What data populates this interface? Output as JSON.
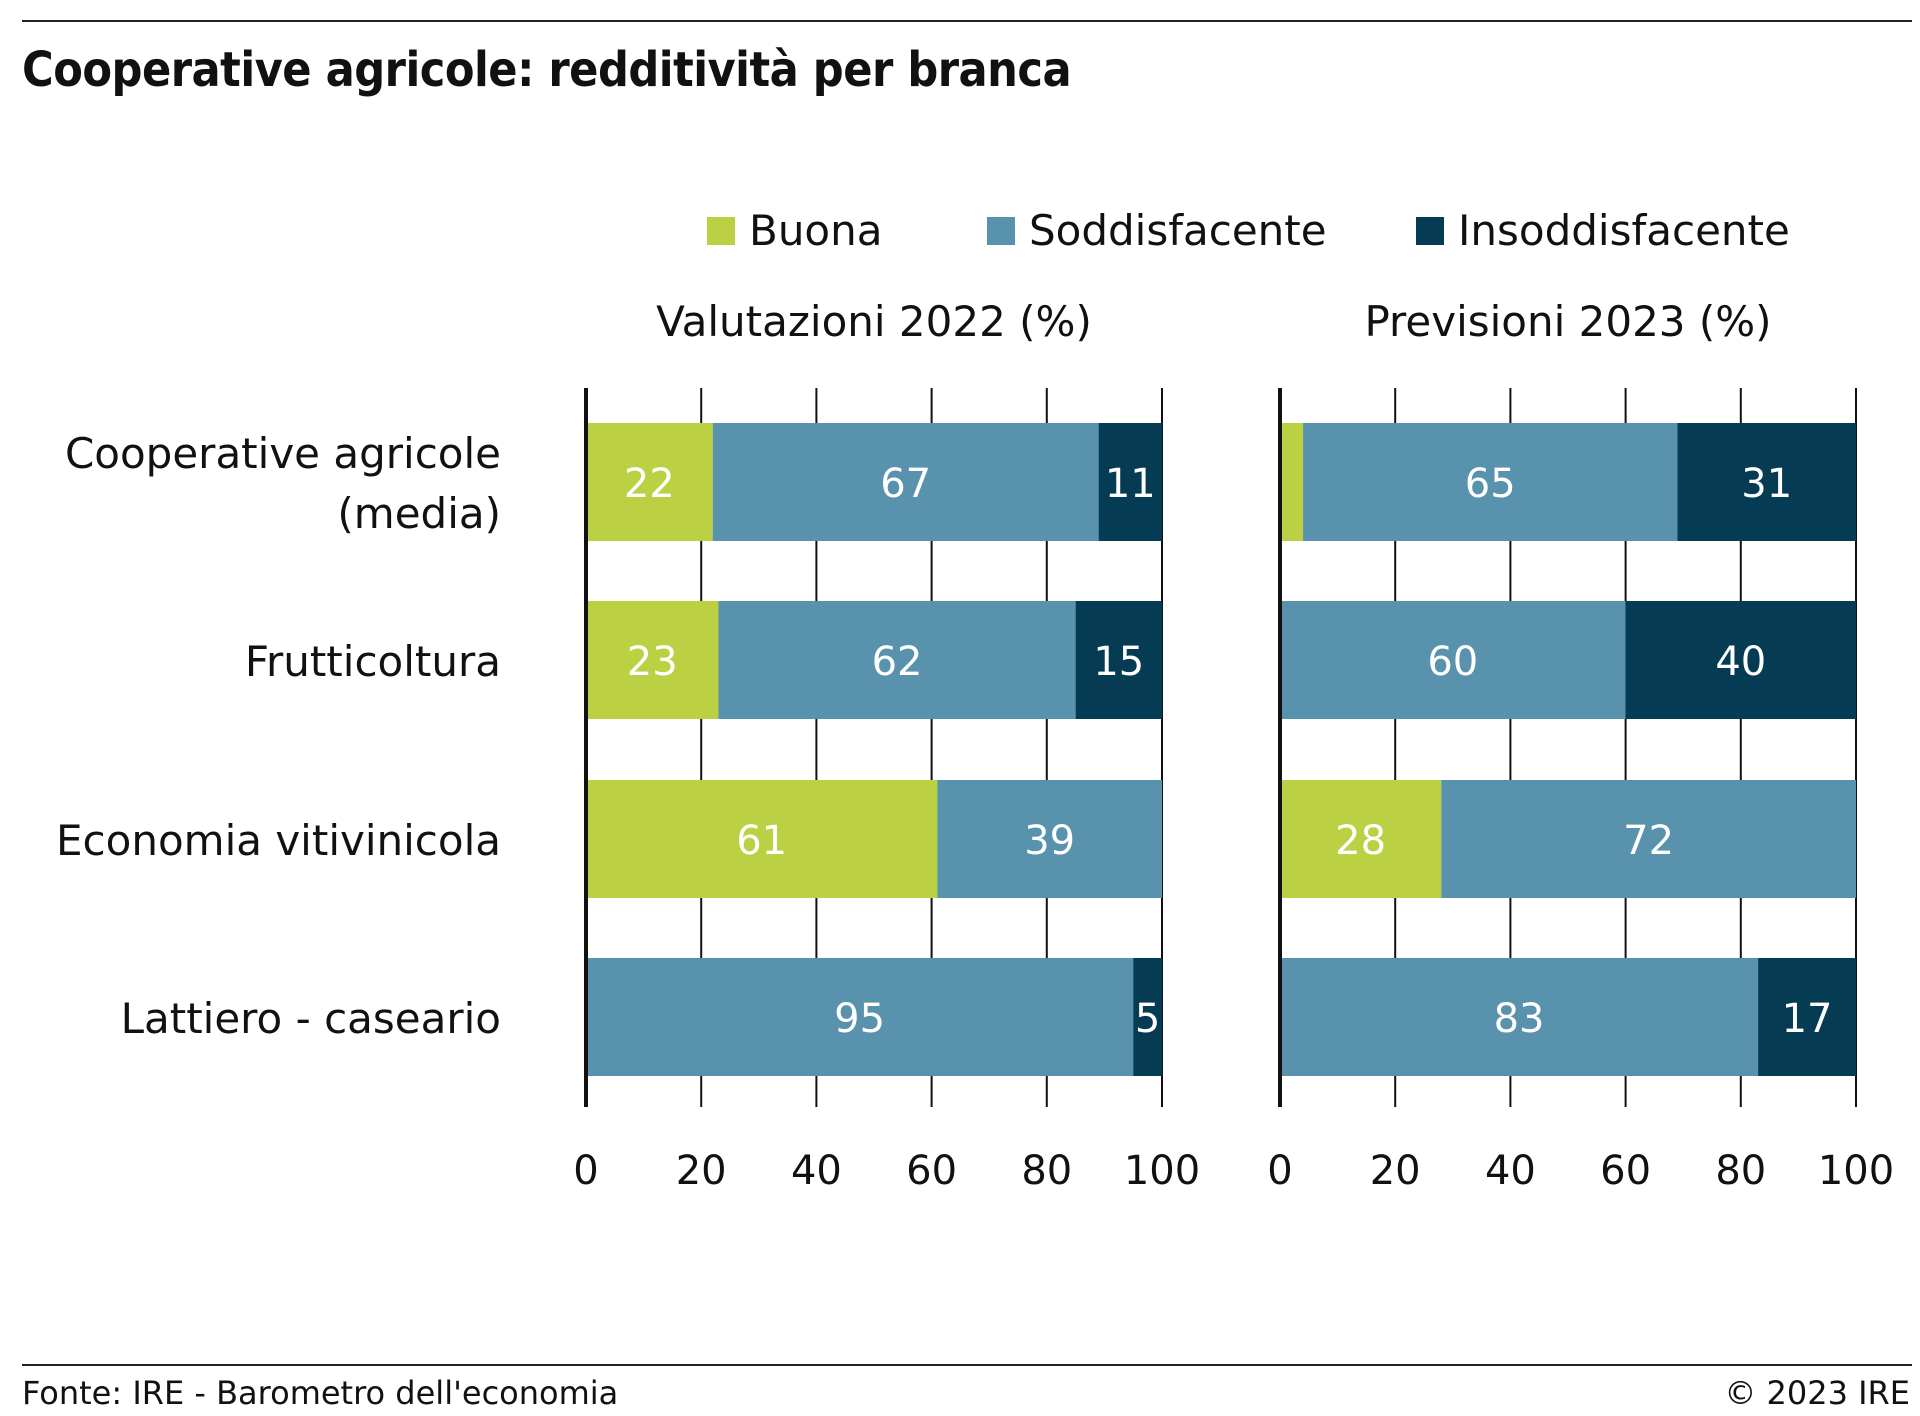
{
  "title": "Cooperative agricole: redditività per branca",
  "footer": {
    "source": "Fonte: IRE - Barometro dell'economia",
    "copyright": "© 2023 IRE"
  },
  "legend": [
    {
      "name": "Buona",
      "color": "#bcd043"
    },
    {
      "name": "Soddisfacente",
      "color": "#5892ad"
    },
    {
      "name": "Insoddisfacente",
      "color": "#053c54"
    }
  ],
  "chart_data": {
    "type": "bar",
    "orientation": "horizontal",
    "stacked": true,
    "categories": [
      [
        "Cooperative agricole",
        "(media)"
      ],
      [
        "Frutticoltura"
      ],
      [
        "Economia vitivinicola"
      ],
      [
        "Lattiero - caseario"
      ]
    ],
    "panels": [
      {
        "title": "Valutazioni 2022 (%)",
        "xlim": [
          0,
          100
        ],
        "ticks": [
          0,
          20,
          40,
          60,
          80,
          100
        ],
        "series": [
          {
            "name": "Buona",
            "values": [
              22,
              23,
              61,
              0
            ]
          },
          {
            "name": "Soddisfacente",
            "values": [
              67,
              62,
              39,
              95
            ]
          },
          {
            "name": "Insoddisfacente",
            "values": [
              11,
              15,
              0,
              5
            ]
          }
        ],
        "labels": [
          [
            "22",
            "67",
            "11"
          ],
          [
            "23",
            "62",
            "15"
          ],
          [
            "61",
            "39",
            ""
          ],
          [
            "",
            "95",
            "5"
          ]
        ]
      },
      {
        "title": "Previsioni 2023 (%)",
        "xlim": [
          0,
          100
        ],
        "ticks": [
          0,
          20,
          40,
          60,
          80,
          100
        ],
        "series": [
          {
            "name": "Buona",
            "values": [
              4,
              0,
              28,
              0
            ]
          },
          {
            "name": "Soddisfacente",
            "values": [
              65,
              60,
              72,
              83
            ]
          },
          {
            "name": "Insoddisfacente",
            "values": [
              31,
              40,
              0,
              17
            ]
          }
        ],
        "labels": [
          [
            "",
            "65",
            "31"
          ],
          [
            "",
            "60",
            "40"
          ],
          [
            "28",
            "72",
            ""
          ],
          [
            "",
            "83",
            "17"
          ]
        ]
      }
    ],
    "colors": {
      "Buona": "#bcd043",
      "Soddisfacente": "#5892ad",
      "Insoddisfacente": "#053c54"
    },
    "grid": true,
    "legend_position": "top"
  }
}
